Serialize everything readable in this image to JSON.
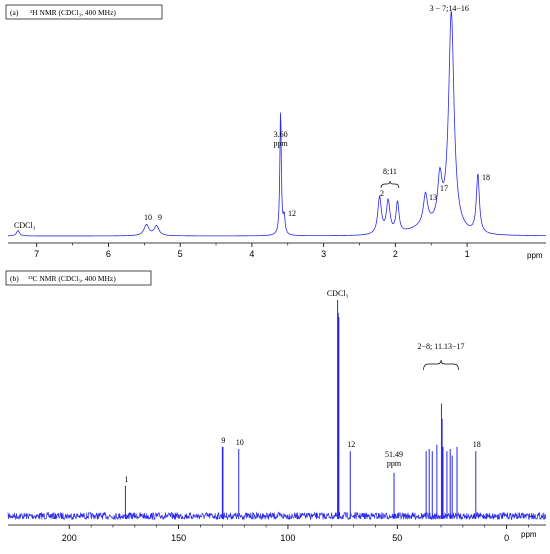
{
  "colors": {
    "spectrum": "#2a2ae6",
    "axis": "#000000",
    "frame": "#000000"
  },
  "chart_data": [
    {
      "type": "line",
      "panel_label": "(a)",
      "title": "¹H NMR (CDCl₃, 400 MHz)",
      "xlabel": "ppm",
      "xlim": [
        7.4,
        -0.1
      ],
      "x_reversed": true,
      "x_ticks": [
        "7",
        "6",
        "5",
        "4",
        "3",
        "2",
        "1"
      ],
      "peaks": [
        {
          "ppm": 7.26,
          "height": 0.025,
          "width": 0.025,
          "label": "CDCl₃"
        },
        {
          "ppm": 5.47,
          "height": 0.05,
          "width": 0.04,
          "label": "10"
        },
        {
          "ppm": 5.33,
          "height": 0.045,
          "width": 0.04,
          "label": "9"
        },
        {
          "ppm": 3.6,
          "height": 0.58,
          "width": 0.012,
          "label": "3.60 ppm"
        },
        {
          "ppm": 3.55,
          "height": 0.08,
          "width": 0.015,
          "label": "12"
        },
        {
          "ppm": 2.22,
          "height": 0.17,
          "width": 0.03,
          "label": "2"
        },
        {
          "ppm": 2.1,
          "height": 0.15,
          "width": 0.03,
          "label": ""
        },
        {
          "ppm": 1.97,
          "height": 0.14,
          "width": 0.025,
          "label": ""
        },
        {
          "ppm": 1.58,
          "height": 0.14,
          "width": 0.035,
          "label": "13"
        },
        {
          "ppm": 1.38,
          "height": 0.2,
          "width": 0.035,
          "label": "17"
        },
        {
          "ppm": 1.22,
          "height": 1.0,
          "width": 0.045,
          "label": "3 − 7;14−16"
        },
        {
          "ppm": 0.85,
          "height": 0.27,
          "width": 0.025,
          "label": "18"
        }
      ],
      "bracket_label": "8;11",
      "bracket_range": [
        2.2,
        1.95
      ]
    },
    {
      "type": "line",
      "panel_label": "(b)",
      "title": "¹³C NMR (CDCl₃, 400 MHz)",
      "xlabel": "ppm",
      "xlim": [
        228,
        -18
      ],
      "x_reversed": true,
      "x_ticks": [
        "200",
        "150",
        "100",
        "50",
        "0"
      ],
      "peaks": [
        {
          "ppm": 174.3,
          "height": 0.14,
          "label": "1"
        },
        {
          "ppm": 130.0,
          "height": 0.32,
          "label": "9"
        },
        {
          "ppm": 129.7,
          "height": 0.32,
          "label": ""
        },
        {
          "ppm": 122.5,
          "height": 0.31,
          "label": "10"
        },
        {
          "ppm": 77.3,
          "height": 1.0,
          "label": "CDCl₃"
        },
        {
          "ppm": 77.0,
          "height": 0.94,
          "label": ""
        },
        {
          "ppm": 76.7,
          "height": 0.92,
          "label": ""
        },
        {
          "ppm": 71.5,
          "height": 0.3,
          "label": "12"
        },
        {
          "ppm": 51.49,
          "height": 0.2,
          "label": "51.49 ppm"
        },
        {
          "ppm": 36.8,
          "height": 0.3,
          "label": ""
        },
        {
          "ppm": 35.4,
          "height": 0.31,
          "label": ""
        },
        {
          "ppm": 34.0,
          "height": 0.3,
          "label": ""
        },
        {
          "ppm": 31.9,
          "height": 0.33,
          "label": ""
        },
        {
          "ppm": 29.8,
          "height": 0.52,
          "label": ""
        },
        {
          "ppm": 29.5,
          "height": 0.45,
          "label": ""
        },
        {
          "ppm": 29.1,
          "height": 0.32,
          "label": ""
        },
        {
          "ppm": 27.3,
          "height": 0.3,
          "label": ""
        },
        {
          "ppm": 25.8,
          "height": 0.31,
          "label": ""
        },
        {
          "ppm": 24.9,
          "height": 0.28,
          "label": ""
        },
        {
          "ppm": 22.7,
          "height": 0.32,
          "label": ""
        },
        {
          "ppm": 14.1,
          "height": 0.3,
          "label": "18"
        }
      ],
      "bracket_label": "2−8; 11.13−17",
      "bracket_range": [
        38,
        22
      ]
    }
  ]
}
